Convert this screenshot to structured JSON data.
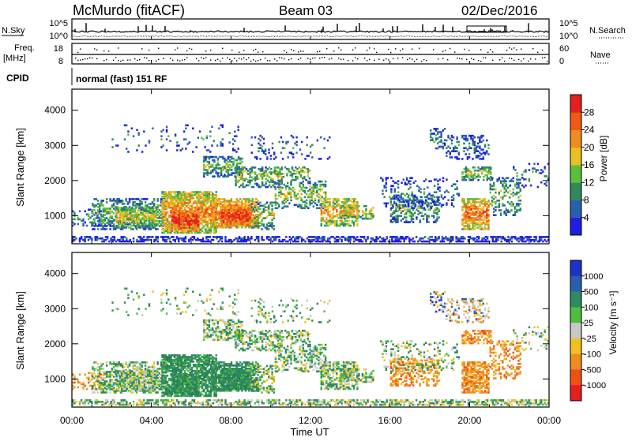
{
  "header": {
    "station": "McMurdo (fitACF)",
    "beam": "Beam 03",
    "date": "02/Dec/2016"
  },
  "top_panels": {
    "nsky_label": "N.Sky",
    "nsky_ticks": [
      "10^5",
      "10^0"
    ],
    "nsearch_label": "N.Search",
    "nsearch_ticks": [
      "10^5",
      "10^0"
    ],
    "freq_label": "Freq.",
    "freq_unit": "[MHz]",
    "freq_ticks": [
      "18",
      "8"
    ],
    "nave_label": "Nave",
    "nave_ticks": [
      "60",
      "0"
    ],
    "cpid_label": "CPID",
    "cpid_text": "normal (fast) 151 RF"
  },
  "chart_data": [
    {
      "type": "heatmap",
      "name": "power",
      "ylabel": "Slant Range [km]",
      "ylim": [
        200,
        4600
      ],
      "yticks": [
        "1000",
        "2000",
        "3000",
        "4000"
      ],
      "colorbar": {
        "label": "Power [dB]",
        "ticks": [
          "4",
          "8",
          "12",
          "16",
          "20",
          "24",
          "28"
        ],
        "colors": [
          "#1e1ee6",
          "#2a5fb0",
          "#2f8a5a",
          "#5cbf3c",
          "#e8c020",
          "#f08c1e",
          "#f05a14",
          "#e61e1e"
        ]
      }
    },
    {
      "type": "heatmap",
      "name": "velocity",
      "ylabel": "Slant Range [km]",
      "ylim": [
        200,
        4600
      ],
      "yticks": [
        "1000",
        "2000",
        "3000",
        "4000"
      ],
      "colorbar": {
        "label": "Velocity [m s⁻¹]",
        "ticks": [
          "1000",
          "500",
          "100",
          "25",
          "-25",
          "-100",
          "-500",
          "-1000"
        ],
        "colors": [
          "#1e32c8",
          "#2a5fb0",
          "#2e8a60",
          "#4cbd3c",
          "#c8c8c8",
          "#f0c020",
          "#f08c1e",
          "#f05014",
          "#e61e1e"
        ]
      }
    }
  ],
  "xaxis": {
    "label": "Time UT",
    "ticks": [
      "00:00",
      "04:00",
      "08:00",
      "12:00",
      "16:00",
      "20:00",
      "00:00"
    ]
  }
}
